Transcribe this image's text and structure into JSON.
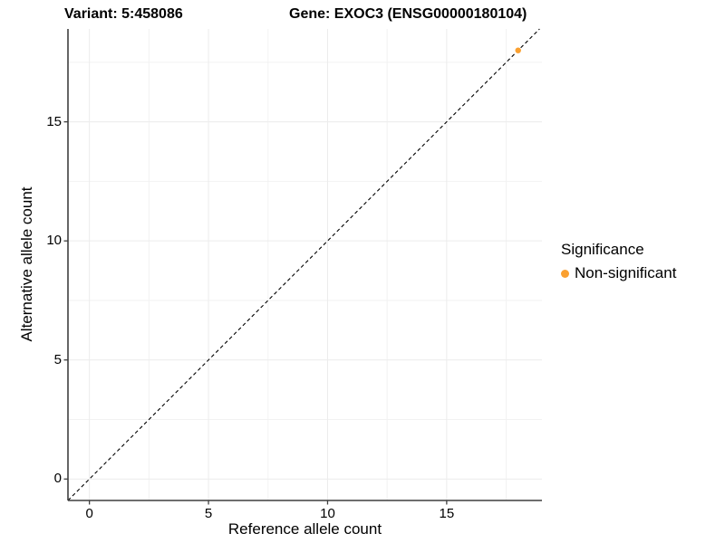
{
  "header": {
    "variant_title": "Variant: 5:458086",
    "gene_title": "Gene: EXOC3 (ENSG00000180104)"
  },
  "chart_data": {
    "type": "scatter",
    "title": "Variant: 5:458086  |  Gene: EXOC3 (ENSG00000180104)",
    "xlabel": "Reference allele count",
    "ylabel": "Alternative allele count",
    "xlim": [
      -0.9,
      19.0
    ],
    "ylim": [
      -0.9,
      18.9
    ],
    "x_ticks": [
      0,
      5,
      10,
      15
    ],
    "y_ticks": [
      0,
      5,
      10,
      15
    ],
    "x_minor_ticks": [
      2.5,
      7.5,
      12.5,
      17.5
    ],
    "y_minor_ticks": [
      2.5,
      7.5,
      12.5,
      17.5
    ],
    "grid": "major+minor",
    "series": [
      {
        "name": "Non-significant",
        "color": "#FAA030",
        "points": [
          {
            "x": 18,
            "y": 18
          }
        ]
      }
    ],
    "reference_line": {
      "type": "identity y=x",
      "style": "dashed",
      "color": "#000000"
    },
    "legend": {
      "title": "Significance",
      "position": "right",
      "items": [
        {
          "label": "Non-significant",
          "color": "#FAA030"
        }
      ]
    }
  },
  "colors": {
    "background": "#FFFFFF",
    "axis": "#3F3F3F",
    "grid_major": "#ECECEC",
    "grid_minor": "#F2F2F2"
  }
}
